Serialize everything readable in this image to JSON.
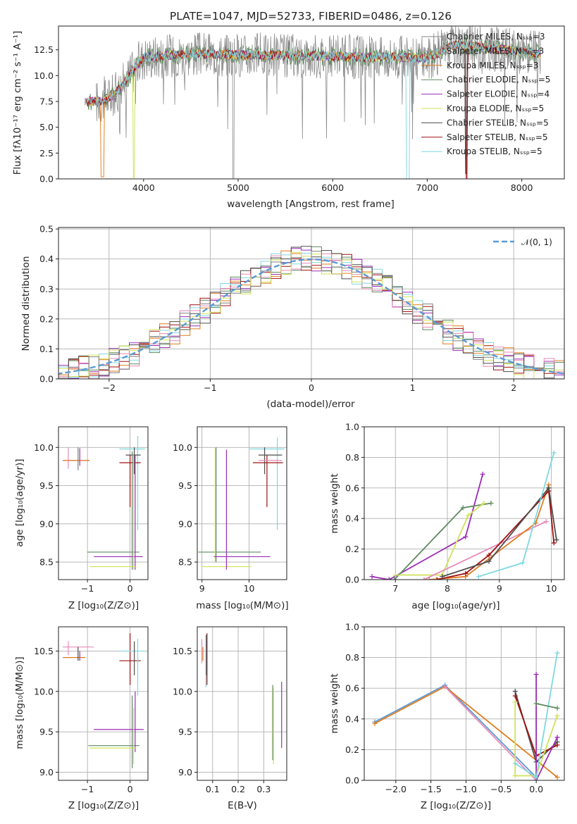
{
  "colors": [
    "#808080",
    "#9a9a9a",
    "#e07c20",
    "#5e8a60",
    "#9b2cb5",
    "#cfe35a",
    "#4d4d4d",
    "#a01010",
    "#7fd8e0",
    "#e88ab8",
    "#5b9bd5"
  ],
  "chart_data": [
    {
      "id": "spectrum",
      "type": "line",
      "title": "PLATE=1047, MJD=52733, FIBERID=0486, z=0.126",
      "xlabel": "wavelength [Angstrom, rest frame]",
      "ylabel": "Flux [fλ10⁻¹⁷ erg cm⁻² s⁻¹ A⁻¹]",
      "xlim": [
        3100,
        8450
      ],
      "ylim": [
        0,
        14.8
      ],
      "xticks": [
        "4000",
        "5000",
        "6000",
        "7000",
        "8000"
      ],
      "yticks": [
        "0.0",
        "2.5",
        "5.0",
        "7.5",
        "10.0",
        "12.5"
      ],
      "grid": false,
      "legend": "right",
      "series": [
        {
          "name": "Chabrier MILES, N_SSP=3"
        },
        {
          "name": "Salpeter MILES, N_SSP=3"
        },
        {
          "name": "Kroupa MILES, N_SSP=3"
        },
        {
          "name": "Chabrier ELODIE, N_SSP=5"
        },
        {
          "name": "Salpeter ELODIE, N_SSP=4"
        },
        {
          "name": "Kroupa ELODIE, N_SSP=5"
        },
        {
          "name": "Chabrier STELIB, N_SSP=5"
        },
        {
          "name": "Salpeter STELIB, N_SSP=5"
        },
        {
          "name": "Kroupa STELIB, N_SSP=5"
        }
      ]
    },
    {
      "id": "residuals",
      "type": "line",
      "xlabel": "(data-model)/error",
      "ylabel": "Normed distribution",
      "xlim": [
        -2.5,
        2.5
      ],
      "ylim": [
        0,
        0.505
      ],
      "xticks": [
        "−2",
        "−1",
        "0",
        "1",
        "2"
      ],
      "yticks": [
        "0.0",
        "0.1",
        "0.2",
        "0.3",
        "0.4",
        "0.5"
      ],
      "grid": true,
      "legend": "top-right",
      "series": [
        {
          "name": "𝒩(0, 1)",
          "mu": 0,
          "sigma": 1
        }
      ]
    },
    {
      "id": "age-vs-Z",
      "type": "scatter",
      "xlabel": "Z [log₁₀(Z/Z⊙)]",
      "ylabel": "age  [log₁₀(age/yr)]",
      "xlim": [
        -1.68,
        0.42
      ],
      "ylim": [
        8.27,
        10.27
      ],
      "xticks": [
        "−1",
        "0"
      ],
      "yticks": [
        "8.5",
        "9.0",
        "9.5",
        "10.0"
      ],
      "grid": true
    },
    {
      "id": "age-vs-mass",
      "type": "scatter",
      "xlabel": "mass [log₁₀(M/M⊙)]",
      "xlim": [
        8.9,
        10.8
      ],
      "ylim": [
        8.27,
        10.27
      ],
      "xticks": [
        "9",
        "10"
      ],
      "yticks": [
        "8.5",
        "9.0",
        "9.5",
        "10.0"
      ],
      "grid": true
    },
    {
      "id": "weight-vs-age",
      "type": "line",
      "xlabel": "age  [log₁₀(age/yr)]",
      "ylabel": "mass weight",
      "xlim": [
        6.4,
        10.25
      ],
      "ylim": [
        0,
        1.0
      ],
      "xticks": [
        "7",
        "8",
        "9",
        "10"
      ],
      "yticks": [
        "0.0",
        "0.2",
        "0.4",
        "0.6",
        "0.8",
        "1.0"
      ],
      "grid": true,
      "series": [
        {
          "x": [
            6.55,
            6.88
          ],
          "y": [
            0.02,
            0.0
          ]
        },
        {
          "x": [
            6.88,
            8.35,
            8.68
          ],
          "y": [
            0.0,
            0.28,
            0.69
          ]
        },
        {
          "x": [
            6.98,
            8.3,
            8.84
          ],
          "y": [
            0.0,
            0.47,
            0.5
          ]
        },
        {
          "x": [
            7.0,
            7.9,
            8.4,
            8.7
          ],
          "y": [
            0.03,
            0.03,
            0.42,
            0.5
          ]
        },
        {
          "x": [
            7.55,
            9.9
          ],
          "y": [
            0.0,
            0.38
          ]
        },
        {
          "x": [
            7.65,
            8.35,
            9.7,
            9.95
          ],
          "y": [
            0.0,
            0.02,
            0.37,
            0.62
          ]
        },
        {
          "x": [
            7.8,
            8.35,
            8.8,
            9.95,
            10.05
          ],
          "y": [
            0.0,
            0.04,
            0.16,
            0.58,
            0.24
          ]
        },
        {
          "x": [
            7.9,
            8.8,
            9.95,
            10.1
          ],
          "y": [
            0.02,
            0.12,
            0.6,
            0.26
          ]
        },
        {
          "x": [
            8.6,
            9.45,
            10.05
          ],
          "y": [
            0.02,
            0.11,
            0.83
          ]
        }
      ]
    },
    {
      "id": "mass-vs-Z",
      "type": "scatter",
      "xlabel": "Z [log₁₀(Z/Z⊙)]",
      "ylabel": "mass [log₁₀(M/M⊙)]",
      "xlim": [
        -1.68,
        0.42
      ],
      "ylim": [
        8.9,
        10.8
      ],
      "xticks": [
        "−1",
        "0"
      ],
      "yticks": [
        "9.0",
        "9.5",
        "10.0",
        "10.5"
      ],
      "grid": true
    },
    {
      "id": "mass-vs-EBV",
      "type": "scatter",
      "xlabel": "E(B-V)",
      "xlim": [
        0.04,
        0.39
      ],
      "ylim": [
        8.9,
        10.8
      ],
      "xticks": [
        "0.1",
        "0.2",
        "0.3"
      ],
      "yticks": [
        "9.0",
        "9.5",
        "10.0",
        "10.5"
      ],
      "grid": true
    },
    {
      "id": "weight-vs-Z",
      "type": "line",
      "xlabel": "Z [log₁₀(Z/Z⊙)]",
      "ylabel": "mass weight",
      "xlim": [
        -2.45,
        0.4
      ],
      "ylim": [
        0,
        1.0
      ],
      "xticks": [
        "−2.0",
        "−1.5",
        "−1.0",
        "−0.5",
        "0.0"
      ],
      "yticks": [
        "0.0",
        "0.2",
        "0.4",
        "0.6",
        "0.8",
        "1.0"
      ],
      "grid": true,
      "series": [
        {
          "x": [
            -2.3,
            -1.3,
            0.0
          ],
          "y": [
            0.38,
            0.62,
            0.02
          ]
        },
        {
          "x": [
            -2.3,
            -1.3,
            0.3
          ],
          "y": [
            0.37,
            0.61,
            0.02
          ]
        },
        {
          "x": [
            -1.3,
            0.0
          ],
          "y": [
            0.61,
            0.0
          ]
        },
        {
          "x": [
            -0.3,
            0.0,
            0.3
          ],
          "y": [
            0.58,
            0.12,
            0.25
          ]
        },
        {
          "x": [
            -0.3,
            0.0,
            0.3
          ],
          "y": [
            0.55,
            0.16,
            0.23
          ]
        },
        {
          "x": [
            -0.3,
            -0.3,
            0.0,
            0.3
          ],
          "y": [
            0.51,
            0.03,
            0.03,
            0.42
          ]
        },
        {
          "x": [
            0.0,
            0.0,
            0.3
          ],
          "y": [
            0.69,
            0.0,
            0.28
          ]
        },
        {
          "x": [
            -0.3,
            0.0,
            0.3
          ],
          "y": [
            0.11,
            0.02,
            0.83
          ]
        },
        {
          "x": [
            0.0,
            0.3
          ],
          "y": [
            0.5,
            0.47
          ]
        }
      ]
    }
  ]
}
